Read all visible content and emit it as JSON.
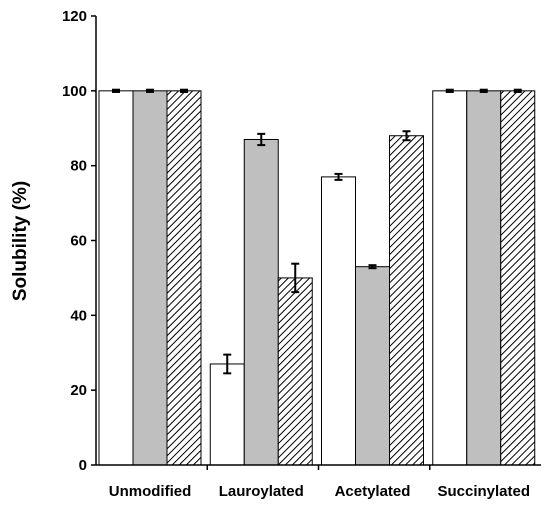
{
  "chart_data": {
    "type": "bar",
    "categories": [
      "Unmodified",
      "Lauroylated",
      "Acetylated",
      "Succinylated"
    ],
    "series": [
      {
        "fill": "white",
        "values": [
          100,
          27,
          77,
          100
        ],
        "errors": [
          0.3,
          2.5,
          0.8,
          0.3
        ]
      },
      {
        "fill": "gray",
        "values": [
          100,
          87,
          53,
          100
        ],
        "errors": [
          0.3,
          1.5,
          0.4,
          0.3
        ]
      },
      {
        "fill": "hatched",
        "values": [
          100,
          50,
          88,
          100
        ],
        "errors": [
          0.3,
          3.8,
          1.2,
          0.3
        ]
      }
    ],
    "ylabel": "Solubility (%)",
    "xlabel": "",
    "ylim": [
      0,
      120
    ],
    "yticks": [
      0,
      20,
      40,
      60,
      80,
      100,
      120
    ],
    "grid": false,
    "legend": "none",
    "colors": {
      "white": "#ffffff",
      "gray": "#bfbfbf",
      "hatch_line": "#000000",
      "axis": "#000000"
    }
  }
}
